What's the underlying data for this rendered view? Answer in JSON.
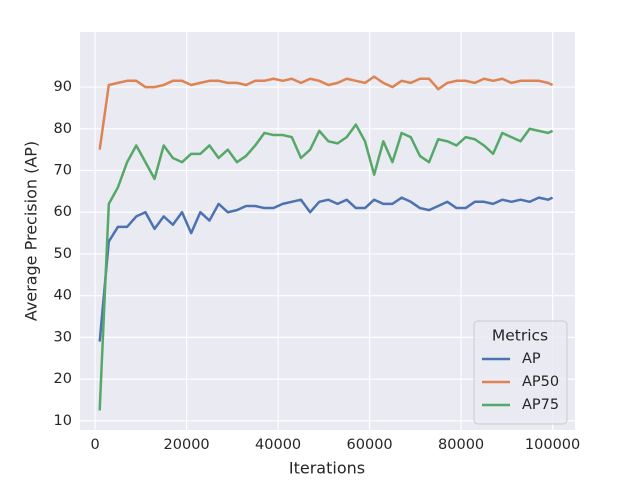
{
  "chart_data": {
    "type": "line",
    "xlabel": "Iterations",
    "ylabel": "Average Precision (AP)",
    "legend_title": "Metrics",
    "legend": "lower right",
    "grid": true,
    "x": [
      1000,
      3000,
      5000,
      7000,
      9000,
      11000,
      13000,
      15000,
      17000,
      19000,
      21000,
      23000,
      25000,
      27000,
      29000,
      31000,
      33000,
      35000,
      37000,
      39000,
      41000,
      43000,
      45000,
      47000,
      49000,
      51000,
      53000,
      55000,
      57000,
      59000,
      61000,
      63000,
      65000,
      67000,
      69000,
      71000,
      73000,
      75000,
      77000,
      79000,
      81000,
      83000,
      85000,
      87000,
      89000,
      91000,
      93000,
      95000,
      97000,
      99000,
      100000
    ],
    "series": [
      {
        "name": "AP",
        "color": "#4c72b0",
        "values": [
          29,
          53,
          56.5,
          56.5,
          59,
          60,
          56,
          59,
          57,
          60,
          55,
          60,
          58,
          62,
          60,
          60.5,
          61.5,
          61.5,
          61,
          61,
          62,
          62.5,
          63,
          60,
          62.5,
          63,
          62,
          63,
          61,
          61,
          63,
          62,
          62,
          63.5,
          62.5,
          61,
          60.5,
          61.5,
          62.5,
          61,
          61,
          62.5,
          62.5,
          62,
          63,
          62.5,
          63,
          62.5,
          63.5,
          63,
          63.5
        ]
      },
      {
        "name": "AP50",
        "color": "#dd8452",
        "values": [
          75,
          90.5,
          91,
          91.5,
          91.5,
          90,
          90,
          90.5,
          91.5,
          91.5,
          90.5,
          91,
          91.5,
          91.5,
          91,
          91,
          90.5,
          91.5,
          91.5,
          92,
          91.5,
          92,
          91,
          92,
          91.5,
          90.5,
          91,
          92,
          91.5,
          91,
          92.5,
          91,
          90,
          91.5,
          91,
          92,
          92,
          89.5,
          91,
          91.5,
          91.5,
          91,
          92,
          91.5,
          92,
          91,
          91.5,
          91.5,
          91.5,
          91,
          90.5
        ]
      },
      {
        "name": "AP75",
        "color": "#55a868",
        "values": [
          12.5,
          62,
          66,
          72,
          76,
          72,
          68,
          76,
          73,
          72,
          74,
          74,
          76,
          73,
          75,
          72,
          73.5,
          76,
          79,
          78.5,
          78.5,
          78,
          73,
          75,
          79.5,
          77,
          76.5,
          78,
          81,
          77,
          69,
          77,
          72,
          79,
          78,
          73.5,
          72,
          77.5,
          77,
          76,
          78,
          77.5,
          76,
          74,
          79,
          78,
          77,
          80,
          79.5,
          79,
          79.5
        ]
      }
    ],
    "xlim": [
      -3300,
      104900
    ],
    "xticks": [
      0,
      20000,
      40000,
      60000,
      80000,
      100000
    ],
    "ylim": [
      7.8,
      103.2
    ],
    "yticks": [
      10,
      20,
      30,
      40,
      50,
      60,
      70,
      80,
      90
    ]
  }
}
